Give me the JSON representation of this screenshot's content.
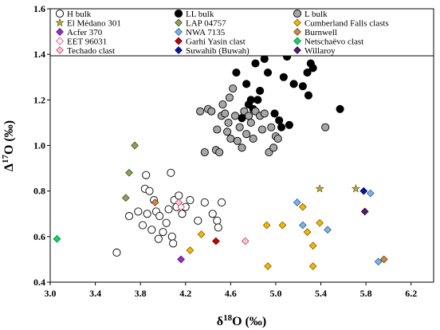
{
  "chart_data": {
    "type": "scatter",
    "xlabel": "δ18O (‰)",
    "ylabel": "Δ17O (‰)",
    "xlim": [
      3.0,
      6.4
    ],
    "ylim": [
      0.4,
      1.6
    ],
    "xticks": [
      "3.0",
      "3.4",
      "3.8",
      "4.2",
      "4.6",
      "5.0",
      "5.4",
      "5.8",
      "6.2"
    ],
    "yticks": [
      "0.4",
      "0.6",
      "0.8",
      "1.0",
      "1.2",
      "1.4",
      "1.6"
    ],
    "legend_position": "top",
    "grid": false,
    "series": [
      {
        "name": "H bulk",
        "marker": "circle",
        "fill": "#ffffff",
        "stroke": "#000000",
        "points": [
          [
            3.59,
            0.53
          ],
          [
            3.7,
            0.69
          ],
          [
            3.78,
            0.71
          ],
          [
            3.82,
            0.65
          ],
          [
            3.84,
            0.81
          ],
          [
            3.85,
            0.87
          ],
          [
            3.86,
            0.7
          ],
          [
            3.88,
            0.8
          ],
          [
            3.9,
            0.63
          ],
          [
            3.92,
            0.76
          ],
          [
            3.94,
            0.71
          ],
          [
            3.96,
            0.59
          ],
          [
            3.97,
            0.69
          ],
          [
            4.0,
            0.62
          ],
          [
            4.03,
            0.66
          ],
          [
            4.05,
            0.72
          ],
          [
            4.07,
            0.88
          ],
          [
            4.08,
            0.6
          ],
          [
            4.09,
            0.57
          ],
          [
            4.1,
            0.76
          ],
          [
            4.12,
            0.73
          ],
          [
            4.14,
            0.78
          ],
          [
            4.17,
            0.7
          ],
          [
            4.2,
            0.73
          ],
          [
            4.24,
            0.76
          ],
          [
            4.31,
            0.67
          ],
          [
            4.37,
            0.75
          ],
          [
            4.44,
            0.7
          ],
          [
            4.48,
            0.67
          ],
          [
            4.49,
            0.64
          ],
          [
            4.52,
            0.75
          ]
        ]
      },
      {
        "name": "LL bulk",
        "marker": "circle",
        "fill": "#000000",
        "stroke": "#000000",
        "points": [
          [
            4.65,
            1.32
          ],
          [
            4.7,
            1.12
          ],
          [
            4.74,
            1.27
          ],
          [
            4.76,
            1.18
          ],
          [
            4.78,
            1.2
          ],
          [
            4.8,
            1.16
          ],
          [
            4.82,
            1.36
          ],
          [
            4.84,
            1.2
          ],
          [
            4.86,
            1.24
          ],
          [
            4.9,
            1.38
          ],
          [
            4.93,
            1.32
          ],
          [
            4.99,
            1.14
          ],
          [
            5.03,
            1.11
          ],
          [
            5.05,
            1.08
          ],
          [
            5.07,
            1.3
          ],
          [
            5.1,
            1.39
          ],
          [
            5.12,
            1.09
          ],
          [
            5.16,
            1.27
          ],
          [
            5.24,
            1.26
          ],
          [
            5.28,
            1.32
          ],
          [
            5.29,
            1.22
          ],
          [
            5.31,
            1.36
          ],
          [
            5.33,
            1.34
          ],
          [
            5.57,
            1.16
          ]
        ]
      },
      {
        "name": "L bulk",
        "marker": "circle",
        "fill": "#a6a6a6",
        "stroke": "#000000",
        "points": [
          [
            4.33,
            1.15
          ],
          [
            4.37,
            0.97
          ],
          [
            4.4,
            1.16
          ],
          [
            4.43,
            1.15
          ],
          [
            4.47,
            0.98
          ],
          [
            4.48,
            1.07
          ],
          [
            4.5,
            0.97
          ],
          [
            4.52,
            1.13
          ],
          [
            4.53,
            1.18
          ],
          [
            4.55,
            1.14
          ],
          [
            4.57,
            1.06
          ],
          [
            4.58,
            1.1
          ],
          [
            4.59,
            1.21
          ],
          [
            4.6,
            1.03
          ],
          [
            4.62,
            1.25
          ],
          [
            4.64,
            1.13
          ],
          [
            4.66,
            1.02
          ],
          [
            4.68,
            1.08
          ],
          [
            4.7,
            0.99
          ],
          [
            4.72,
            1.15
          ],
          [
            4.74,
            1.05
          ],
          [
            4.76,
            1.13
          ],
          [
            4.78,
            1.1
          ],
          [
            4.8,
            1.03
          ],
          [
            4.82,
            1.15
          ],
          [
            4.86,
            1.13
          ],
          [
            4.88,
            1.07
          ],
          [
            4.9,
            1.14
          ],
          [
            4.94,
            0.97
          ],
          [
            4.96,
            1.08
          ],
          [
            4.98,
            0.99
          ],
          [
            5.0,
            1.04
          ],
          [
            5.02,
            1.03
          ],
          [
            5.44,
            1.08
          ]
        ]
      },
      {
        "name": "El Médano 301",
        "marker": "star",
        "fill": "#b5a642",
        "stroke": "#5a5a00",
        "points": [
          [
            5.39,
            0.81
          ],
          [
            5.71,
            0.81
          ]
        ]
      },
      {
        "name": "LAP 04757",
        "marker": "diamond",
        "fill": "#8fa35a",
        "stroke": "#3a4a1a",
        "points": [
          [
            3.67,
            0.77
          ],
          [
            3.7,
            0.88
          ],
          [
            3.75,
            1.0
          ]
        ]
      },
      {
        "name": "Cumberland Falls clasts",
        "marker": "diamond",
        "fill": "#f5b800",
        "stroke": "#7a5800",
        "points": [
          [
            4.24,
            0.54
          ],
          [
            4.34,
            0.61
          ],
          [
            4.92,
            0.65
          ],
          [
            4.93,
            0.47
          ],
          [
            5.06,
            0.65
          ],
          [
            5.24,
            0.73
          ],
          [
            5.28,
            0.62
          ],
          [
            5.33,
            0.56
          ],
          [
            5.33,
            0.47
          ],
          [
            5.39,
            0.66
          ]
        ]
      },
      {
        "name": "Acfer 370",
        "marker": "diamond",
        "fill": "#9b30c8",
        "stroke": "#4a0a66",
        "points": [
          [
            4.16,
            0.5
          ]
        ]
      },
      {
        "name": "NWA 7135",
        "marker": "diamond",
        "fill": "#7fb3e0",
        "stroke": "#2a5a8a",
        "points": [
          [
            5.19,
            0.75
          ],
          [
            5.24,
            0.65
          ],
          [
            5.46,
            0.63
          ],
          [
            5.84,
            0.79
          ],
          [
            5.91,
            0.49
          ]
        ]
      },
      {
        "name": "Burnwell",
        "marker": "diamond",
        "fill": "#d08a40",
        "stroke": "#6a3a10",
        "points": [
          [
            3.93,
            0.75
          ],
          [
            5.96,
            0.5
          ]
        ]
      },
      {
        "name": "EET 96031",
        "marker": "diamond",
        "fill": "#ffffff",
        "stroke": "#d4407a",
        "points": [
          [
            4.16,
            0.73
          ]
        ]
      },
      {
        "name": "Garhi Yasin clast",
        "marker": "diamond",
        "fill": "#c00000",
        "stroke": "#600000",
        "points": [
          [
            4.47,
            0.58
          ]
        ]
      },
      {
        "name": "Netschaëvo clast",
        "marker": "diamond",
        "fill": "#00e060",
        "stroke": "#007030",
        "points": [
          [
            3.06,
            0.59
          ]
        ]
      },
      {
        "name": "Techado clast",
        "marker": "diamond",
        "fill": "#f5c6d6",
        "stroke": "#c04070",
        "points": [
          [
            4.14,
            0.75
          ],
          [
            4.73,
            0.58
          ]
        ]
      },
      {
        "name": "Suwahib (Buwah)",
        "marker": "diamond",
        "fill": "#0018a8",
        "stroke": "#000050",
        "points": [
          [
            5.78,
            0.8
          ]
        ]
      },
      {
        "name": "Willaroy",
        "marker": "diamond",
        "fill": "#5a1a6a",
        "stroke": "#200028",
        "points": [
          [
            5.79,
            0.71
          ]
        ]
      }
    ]
  }
}
